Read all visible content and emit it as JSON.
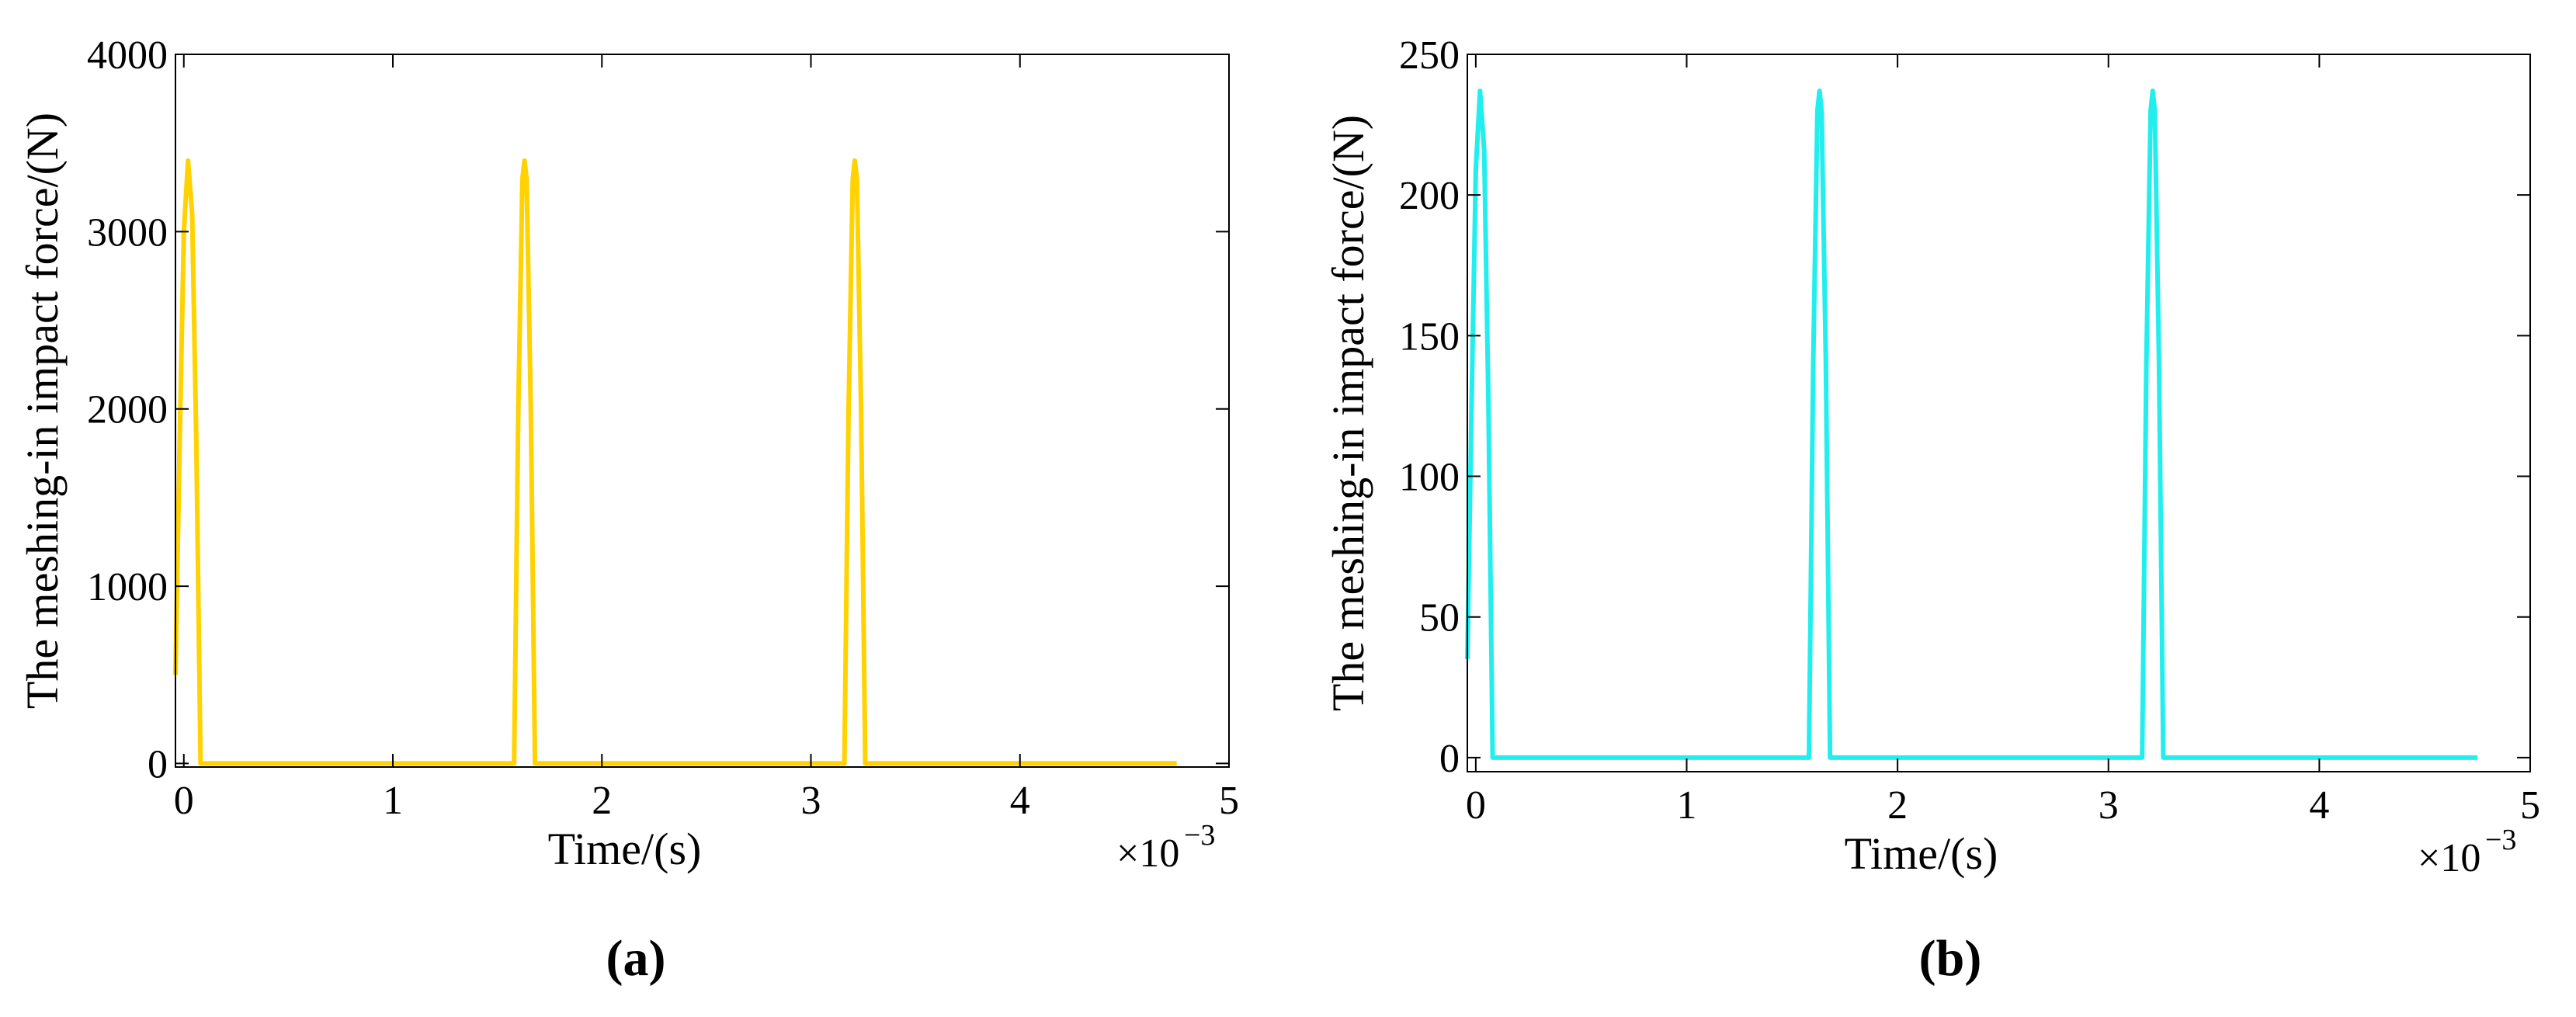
{
  "chart_data": [
    {
      "type": "line",
      "panel_label": "(a)",
      "xlabel": "Time/(s)",
      "ylabel": "The meshing-in impact force/(N)",
      "x_multiplier": "×10",
      "x_exponent": "−3",
      "x": [
        -0.04,
        -0.02,
        0,
        0.02,
        0.04,
        0.06,
        0.08,
        1.58,
        1.6,
        1.62,
        1.63,
        1.64,
        1.66,
        1.68,
        3.16,
        3.18,
        3.2,
        3.21,
        3.22,
        3.24,
        3.26,
        4.75
      ],
      "series": [
        {
          "color": "#ffd200",
          "values": [
            500,
            1800,
            3000,
            3400,
            3100,
            1800,
            0,
            0,
            2000,
            3300,
            3400,
            3300,
            2000,
            0,
            0,
            2000,
            3300,
            3400,
            3300,
            2000,
            0,
            0
          ]
        }
      ],
      "xlim": [
        -0.04,
        5
      ],
      "xticks": [
        0,
        1,
        2,
        3,
        4,
        5
      ],
      "ylim": [
        -20,
        4000
      ],
      "yticks": [
        0,
        1000,
        2000,
        3000,
        4000
      ]
    },
    {
      "type": "line",
      "panel_label": "(b)",
      "xlabel": "Time/(s)",
      "ylabel": "The meshing-in impact force/(N)",
      "x_multiplier": "×10",
      "x_exponent": "−3",
      "x": [
        -0.04,
        -0.02,
        0,
        0.02,
        0.04,
        0.06,
        0.08,
        1.58,
        1.6,
        1.62,
        1.63,
        1.64,
        1.66,
        1.68,
        3.16,
        3.18,
        3.2,
        3.21,
        3.22,
        3.24,
        3.26,
        4.75
      ],
      "series": [
        {
          "color": "#22eeee",
          "values": [
            35,
            125,
            209,
            237,
            216,
            125,
            0,
            0,
            140,
            230,
            237,
            230,
            140,
            0,
            0,
            140,
            230,
            237,
            230,
            140,
            0,
            0
          ]
        }
      ],
      "xlim": [
        -0.04,
        5
      ],
      "xticks": [
        0,
        1,
        2,
        3,
        4,
        5
      ],
      "ylim": [
        -5,
        250
      ],
      "yticks": [
        0,
        50,
        100,
        150,
        200,
        250
      ]
    }
  ]
}
